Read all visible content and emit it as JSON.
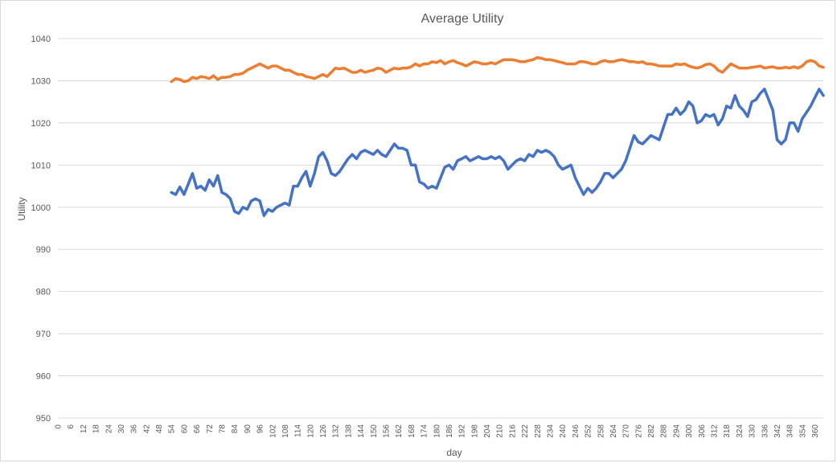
{
  "chart_data": {
    "type": "line",
    "title": "Average Utility",
    "xlabel": "day",
    "ylabel": "Utility",
    "xlim": [
      0,
      364
    ],
    "ylim": [
      950,
      1040
    ],
    "y_ticks": [
      950,
      960,
      970,
      980,
      990,
      1000,
      1010,
      1020,
      1030,
      1040
    ],
    "x_tick_step": 6,
    "grid": true,
    "legend": "none",
    "series": [
      {
        "color": "#4472C4",
        "points": [
          [
            54,
            1003.5
          ],
          [
            56,
            1003
          ],
          [
            58,
            1004.8
          ],
          [
            60,
            1003
          ],
          [
            62,
            1005.5
          ],
          [
            64,
            1008
          ],
          [
            66,
            1004.5
          ],
          [
            68,
            1005
          ],
          [
            70,
            1004
          ],
          [
            72,
            1006.5
          ],
          [
            74,
            1005
          ],
          [
            76,
            1007.5
          ],
          [
            78,
            1003.5
          ],
          [
            80,
            1003
          ],
          [
            82,
            1002
          ],
          [
            84,
            999
          ],
          [
            86,
            998.5
          ],
          [
            88,
            1000
          ],
          [
            90,
            999.5
          ],
          [
            92,
            1001.5
          ],
          [
            94,
            1002
          ],
          [
            96,
            1001.5
          ],
          [
            98,
            998
          ],
          [
            100,
            999.5
          ],
          [
            102,
            999
          ],
          [
            104,
            1000
          ],
          [
            106,
            1000.5
          ],
          [
            108,
            1001
          ],
          [
            110,
            1000.5
          ],
          [
            112,
            1005
          ],
          [
            114,
            1005
          ],
          [
            116,
            1007
          ],
          [
            118,
            1008.5
          ],
          [
            120,
            1005
          ],
          [
            122,
            1008
          ],
          [
            124,
            1012
          ],
          [
            126,
            1013
          ],
          [
            128,
            1011
          ],
          [
            130,
            1008
          ],
          [
            132,
            1007.5
          ],
          [
            134,
            1008.5
          ],
          [
            136,
            1010
          ],
          [
            138,
            1011.5
          ],
          [
            140,
            1012.5
          ],
          [
            142,
            1011.5
          ],
          [
            144,
            1013
          ],
          [
            146,
            1013.5
          ],
          [
            148,
            1013
          ],
          [
            150,
            1012.5
          ],
          [
            152,
            1013.5
          ],
          [
            154,
            1012.5
          ],
          [
            156,
            1012
          ],
          [
            158,
            1013.5
          ],
          [
            160,
            1015
          ],
          [
            162,
            1014
          ],
          [
            164,
            1014
          ],
          [
            166,
            1013.5
          ],
          [
            168,
            1010
          ],
          [
            170,
            1010
          ],
          [
            172,
            1006
          ],
          [
            174,
            1005.5
          ],
          [
            176,
            1004.5
          ],
          [
            178,
            1005
          ],
          [
            180,
            1004.5
          ],
          [
            182,
            1007
          ],
          [
            184,
            1009.5
          ],
          [
            186,
            1010
          ],
          [
            188,
            1009
          ],
          [
            190,
            1011
          ],
          [
            192,
            1011.5
          ],
          [
            194,
            1012
          ],
          [
            196,
            1011
          ],
          [
            198,
            1011.5
          ],
          [
            200,
            1012
          ],
          [
            202,
            1011.5
          ],
          [
            204,
            1011.5
          ],
          [
            206,
            1012
          ],
          [
            208,
            1011.5
          ],
          [
            210,
            1012
          ],
          [
            212,
            1011
          ],
          [
            214,
            1009
          ],
          [
            216,
            1010
          ],
          [
            218,
            1011
          ],
          [
            220,
            1011.5
          ],
          [
            222,
            1011
          ],
          [
            224,
            1012.5
          ],
          [
            226,
            1012
          ],
          [
            228,
            1013.5
          ],
          [
            230,
            1013
          ],
          [
            232,
            1013.5
          ],
          [
            234,
            1013
          ],
          [
            236,
            1012
          ],
          [
            238,
            1010
          ],
          [
            240,
            1009
          ],
          [
            242,
            1009.5
          ],
          [
            244,
            1010
          ],
          [
            246,
            1007
          ],
          [
            248,
            1005
          ],
          [
            250,
            1003
          ],
          [
            252,
            1004.5
          ],
          [
            254,
            1003.5
          ],
          [
            256,
            1004.5
          ],
          [
            258,
            1006
          ],
          [
            260,
            1008
          ],
          [
            262,
            1008
          ],
          [
            264,
            1007
          ],
          [
            266,
            1008
          ],
          [
            268,
            1009
          ],
          [
            270,
            1011
          ],
          [
            272,
            1014
          ],
          [
            274,
            1017
          ],
          [
            276,
            1015.5
          ],
          [
            278,
            1015
          ],
          [
            280,
            1016
          ],
          [
            282,
            1017
          ],
          [
            284,
            1016.5
          ],
          [
            286,
            1016
          ],
          [
            288,
            1019
          ],
          [
            290,
            1022
          ],
          [
            292,
            1022
          ],
          [
            294,
            1023.5
          ],
          [
            296,
            1022
          ],
          [
            298,
            1023
          ],
          [
            300,
            1025
          ],
          [
            302,
            1024
          ],
          [
            304,
            1020
          ],
          [
            306,
            1020.5
          ],
          [
            308,
            1022
          ],
          [
            310,
            1021.5
          ],
          [
            312,
            1022
          ],
          [
            314,
            1019.5
          ],
          [
            316,
            1021
          ],
          [
            318,
            1024
          ],
          [
            320,
            1023.5
          ],
          [
            322,
            1026.5
          ],
          [
            324,
            1024
          ],
          [
            326,
            1023
          ],
          [
            328,
            1021.5
          ],
          [
            330,
            1025
          ],
          [
            332,
            1025.5
          ],
          [
            334,
            1027
          ],
          [
            336,
            1028
          ],
          [
            338,
            1025.5
          ],
          [
            340,
            1023
          ],
          [
            342,
            1016
          ],
          [
            344,
            1015
          ],
          [
            346,
            1016
          ],
          [
            348,
            1020
          ],
          [
            350,
            1020
          ],
          [
            352,
            1018
          ],
          [
            354,
            1021
          ],
          [
            356,
            1022.5
          ],
          [
            358,
            1024
          ],
          [
            360,
            1026
          ],
          [
            362,
            1028
          ],
          [
            364,
            1026.5
          ]
        ]
      },
      {
        "color": "#ED7D31",
        "points": [
          [
            54,
            1029.8
          ],
          [
            56,
            1030.5
          ],
          [
            58,
            1030.3
          ],
          [
            60,
            1029.8
          ],
          [
            62,
            1030
          ],
          [
            64,
            1030.8
          ],
          [
            66,
            1030.5
          ],
          [
            68,
            1031
          ],
          [
            70,
            1030.8
          ],
          [
            72,
            1030.5
          ],
          [
            74,
            1031.2
          ],
          [
            76,
            1030.3
          ],
          [
            78,
            1030.8
          ],
          [
            80,
            1030.8
          ],
          [
            82,
            1031
          ],
          [
            84,
            1031.5
          ],
          [
            86,
            1031.5
          ],
          [
            88,
            1031.8
          ],
          [
            90,
            1032.5
          ],
          [
            92,
            1033
          ],
          [
            94,
            1033.5
          ],
          [
            96,
            1034
          ],
          [
            98,
            1033.5
          ],
          [
            100,
            1033
          ],
          [
            102,
            1033.5
          ],
          [
            104,
            1033.5
          ],
          [
            106,
            1033
          ],
          [
            108,
            1032.5
          ],
          [
            110,
            1032.5
          ],
          [
            112,
            1032
          ],
          [
            114,
            1031.5
          ],
          [
            116,
            1031.5
          ],
          [
            118,
            1031
          ],
          [
            120,
            1030.8
          ],
          [
            122,
            1030.5
          ],
          [
            124,
            1031
          ],
          [
            126,
            1031.5
          ],
          [
            128,
            1031
          ],
          [
            130,
            1032
          ],
          [
            132,
            1033
          ],
          [
            134,
            1032.8
          ],
          [
            136,
            1033
          ],
          [
            138,
            1032.5
          ],
          [
            140,
            1032
          ],
          [
            142,
            1032
          ],
          [
            144,
            1032.5
          ],
          [
            146,
            1032
          ],
          [
            148,
            1032.3
          ],
          [
            150,
            1032.5
          ],
          [
            152,
            1033
          ],
          [
            154,
            1032.8
          ],
          [
            156,
            1032
          ],
          [
            158,
            1032.5
          ],
          [
            160,
            1033
          ],
          [
            162,
            1032.8
          ],
          [
            164,
            1033
          ],
          [
            166,
            1033
          ],
          [
            168,
            1033.3
          ],
          [
            170,
            1034
          ],
          [
            172,
            1033.5
          ],
          [
            174,
            1034
          ],
          [
            176,
            1034
          ],
          [
            178,
            1034.5
          ],
          [
            180,
            1034.3
          ],
          [
            182,
            1034.8
          ],
          [
            184,
            1034
          ],
          [
            186,
            1034.5
          ],
          [
            188,
            1034.8
          ],
          [
            190,
            1034.3
          ],
          [
            192,
            1034
          ],
          [
            194,
            1033.5
          ],
          [
            196,
            1034
          ],
          [
            198,
            1034.5
          ],
          [
            200,
            1034.3
          ],
          [
            202,
            1034
          ],
          [
            204,
            1034
          ],
          [
            206,
            1034.3
          ],
          [
            208,
            1034
          ],
          [
            210,
            1034.5
          ],
          [
            212,
            1035
          ],
          [
            214,
            1035
          ],
          [
            216,
            1035
          ],
          [
            218,
            1034.8
          ],
          [
            220,
            1034.5
          ],
          [
            222,
            1034.5
          ],
          [
            224,
            1034.8
          ],
          [
            226,
            1035
          ],
          [
            228,
            1035.5
          ],
          [
            230,
            1035.3
          ],
          [
            232,
            1035
          ],
          [
            234,
            1035
          ],
          [
            236,
            1034.8
          ],
          [
            238,
            1034.5
          ],
          [
            240,
            1034.3
          ],
          [
            242,
            1034
          ],
          [
            244,
            1034
          ],
          [
            246,
            1034
          ],
          [
            248,
            1034.5
          ],
          [
            250,
            1034.5
          ],
          [
            252,
            1034.3
          ],
          [
            254,
            1034
          ],
          [
            256,
            1034
          ],
          [
            258,
            1034.5
          ],
          [
            260,
            1034.8
          ],
          [
            262,
            1034.5
          ],
          [
            264,
            1034.5
          ],
          [
            266,
            1034.8
          ],
          [
            268,
            1035
          ],
          [
            270,
            1034.8
          ],
          [
            272,
            1034.5
          ],
          [
            274,
            1034.5
          ],
          [
            276,
            1034.3
          ],
          [
            278,
            1034.5
          ],
          [
            280,
            1034
          ],
          [
            282,
            1034
          ],
          [
            284,
            1033.8
          ],
          [
            286,
            1033.5
          ],
          [
            288,
            1033.5
          ],
          [
            290,
            1033.5
          ],
          [
            292,
            1033.5
          ],
          [
            294,
            1034
          ],
          [
            296,
            1033.8
          ],
          [
            298,
            1034
          ],
          [
            300,
            1033.5
          ],
          [
            302,
            1033.2
          ],
          [
            304,
            1033
          ],
          [
            306,
            1033.3
          ],
          [
            308,
            1033.8
          ],
          [
            310,
            1034
          ],
          [
            312,
            1033.5
          ],
          [
            314,
            1032.5
          ],
          [
            316,
            1032
          ],
          [
            318,
            1033
          ],
          [
            320,
            1034
          ],
          [
            322,
            1033.5
          ],
          [
            324,
            1033
          ],
          [
            326,
            1033
          ],
          [
            328,
            1033
          ],
          [
            330,
            1033.2
          ],
          [
            332,
            1033.3
          ],
          [
            334,
            1033.5
          ],
          [
            336,
            1033
          ],
          [
            338,
            1033.2
          ],
          [
            340,
            1033.3
          ],
          [
            342,
            1033
          ],
          [
            344,
            1033
          ],
          [
            346,
            1033.2
          ],
          [
            348,
            1033
          ],
          [
            350,
            1033.3
          ],
          [
            352,
            1033
          ],
          [
            354,
            1033.5
          ],
          [
            356,
            1034.5
          ],
          [
            358,
            1034.8
          ],
          [
            360,
            1034.5
          ],
          [
            362,
            1033.5
          ],
          [
            364,
            1033.2
          ]
        ]
      }
    ]
  }
}
